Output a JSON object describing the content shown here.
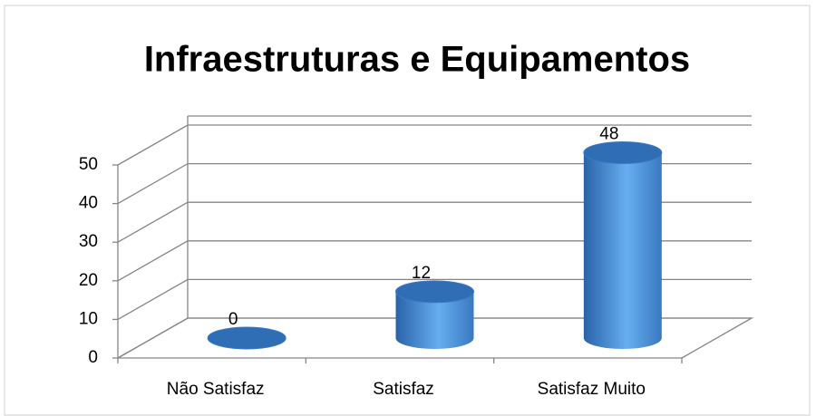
{
  "chart_data": {
    "type": "bar3d",
    "title": "Infraestruturas e Equipamentos",
    "categories": [
      "Não Satisfaz",
      "Satisfaz",
      "Satisfaz Muito"
    ],
    "values": [
      0,
      12,
      48
    ],
    "color": "#3d85d0",
    "ylim": [
      0,
      50
    ],
    "yticks": [
      0,
      10,
      20,
      30,
      40,
      50
    ],
    "grid": true
  }
}
